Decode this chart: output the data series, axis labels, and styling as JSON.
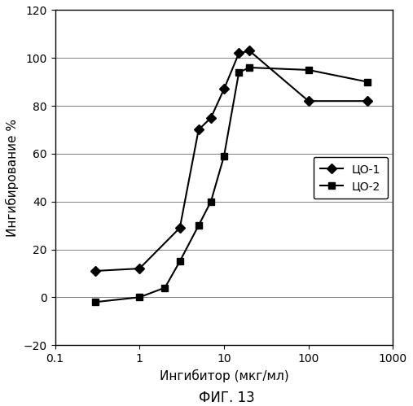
{
  "co1_x": [
    0.3,
    1.0,
    3.0,
    5.0,
    7.0,
    10.0,
    15.0,
    20.0,
    100.0,
    500.0
  ],
  "co1_y": [
    11,
    12,
    29,
    70,
    75,
    87,
    102,
    103,
    82,
    82
  ],
  "co2_x": [
    0.3,
    1.0,
    2.0,
    3.0,
    5.0,
    7.0,
    10.0,
    15.0,
    20.0,
    100.0,
    500.0
  ],
  "co2_y": [
    -2,
    0,
    4,
    15,
    30,
    40,
    59,
    94,
    96,
    95,
    90
  ],
  "xlabel": "Ингибитор (мкг/мл)",
  "ylabel": "Ингибирование %",
  "fig_label": "ФИГ. 13",
  "legend1": "ЦО-1",
  "legend2": "ЦО-2",
  "xlim_log": [
    0.1,
    1000
  ],
  "ylim": [
    -20,
    120
  ],
  "yticks": [
    -20,
    0,
    20,
    40,
    60,
    80,
    100,
    120
  ],
  "xticks": [
    0.1,
    1,
    10,
    100,
    1000
  ],
  "xticklabels": [
    "0.1",
    "1",
    "10",
    "100",
    "1000"
  ],
  "color": "black"
}
